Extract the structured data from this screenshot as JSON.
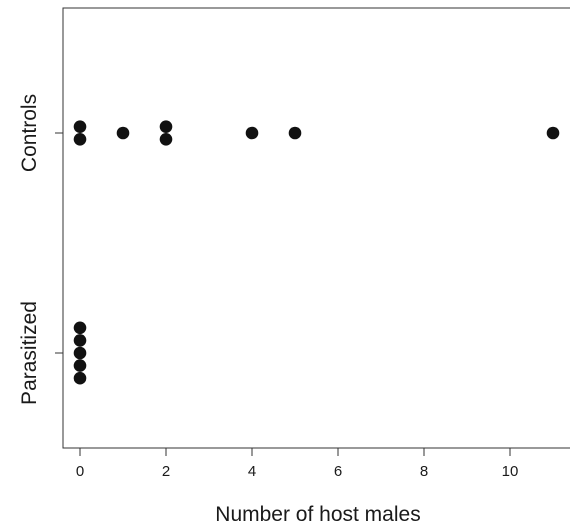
{
  "chart_data": {
    "type": "scatter",
    "subtype": "dot-strip",
    "title": "",
    "xlabel": "Number of host males",
    "ylabel": "",
    "xlim": [
      -0.4,
      12.2
    ],
    "xticks": [
      0,
      2,
      4,
      6,
      8,
      10
    ],
    "categories": [
      "Parasitized",
      "Controls"
    ],
    "grid": false,
    "legend": "none",
    "marker_color": "#111111",
    "series": [
      {
        "category": "Controls",
        "x": [
          0,
          0,
          1,
          2,
          2,
          4,
          5,
          11
        ]
      },
      {
        "category": "Parasitized",
        "x": [
          0,
          0,
          0,
          0,
          0
        ]
      }
    ]
  }
}
